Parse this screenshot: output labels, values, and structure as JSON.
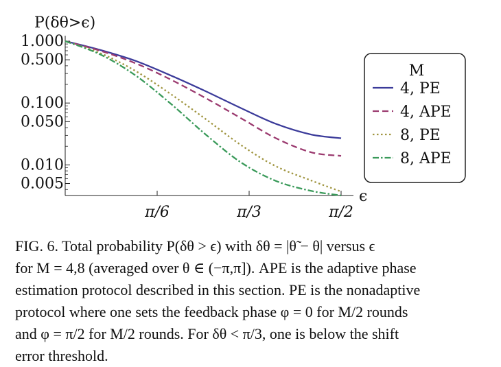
{
  "chart_data": {
    "type": "line",
    "ylabel": "P(δθ>ϵ)",
    "xlabel": "ϵ",
    "yscale": "log",
    "ylim": [
      0.0032,
      1.0
    ],
    "xlim": [
      0,
      1.5708
    ],
    "yticks": [
      {
        "value": 1.0,
        "label": "1.000"
      },
      {
        "value": 0.5,
        "label": "0.500"
      },
      {
        "value": 0.1,
        "label": "0.100"
      },
      {
        "value": 0.05,
        "label": "0.050"
      },
      {
        "value": 0.01,
        "label": "0.010"
      },
      {
        "value": 0.005,
        "label": "0.005"
      }
    ],
    "xticks": [
      {
        "value": 0.5236,
        "label": "π/6"
      },
      {
        "value": 1.0472,
        "label": "π/3"
      },
      {
        "value": 1.5708,
        "label": "π/2"
      }
    ],
    "legend": {
      "title": "M",
      "position": "right"
    },
    "series": [
      {
        "name": "4, PE",
        "color": "#3b3b9a",
        "dash": "solid",
        "x": [
          0,
          0.2,
          0.4,
          0.6,
          0.8,
          1.0,
          1.2,
          1.4,
          1.5708
        ],
        "y": [
          1.0,
          0.72,
          0.48,
          0.28,
          0.155,
          0.083,
          0.046,
          0.031,
          0.027
        ]
      },
      {
        "name": "4, APE",
        "color": "#9b3a6f",
        "dash": "dash",
        "x": [
          0,
          0.2,
          0.4,
          0.6,
          0.8,
          1.0,
          1.2,
          1.4,
          1.5708
        ],
        "y": [
          1.0,
          0.7,
          0.44,
          0.24,
          0.12,
          0.057,
          0.027,
          0.016,
          0.014
        ]
      },
      {
        "name": "8, PE",
        "color": "#a09540",
        "dash": "dot",
        "x": [
          0,
          0.2,
          0.4,
          0.6,
          0.8,
          1.0,
          1.2,
          1.4,
          1.5708
        ],
        "y": [
          1.0,
          0.64,
          0.33,
          0.14,
          0.055,
          0.021,
          0.0095,
          0.0056,
          0.0037
        ]
      },
      {
        "name": "8, APE",
        "color": "#3a9a5a",
        "dash": "dashdot",
        "x": [
          0,
          0.2,
          0.4,
          0.6,
          0.8,
          1.0,
          1.2,
          1.4,
          1.5708
        ],
        "y": [
          1.0,
          0.61,
          0.28,
          0.098,
          0.031,
          0.011,
          0.0055,
          0.0038,
          0.0032
        ]
      }
    ]
  },
  "caption": {
    "lines": [
      "FIG. 6.  Total probability P(δθ > ϵ) with δθ = |θ̃ − θ| versus ϵ",
      "for M = 4,8 (averaged over θ ∈ (−π,π]). APE is the adaptive phase",
      "estimation protocol described in this section. PE is the nonadaptive",
      "protocol where one sets the feedback phase φ = 0 for M/2 rounds",
      "and φ = π/2 for M/2 rounds. For δθ < π/3, one is below the shift",
      "error threshold."
    ]
  }
}
